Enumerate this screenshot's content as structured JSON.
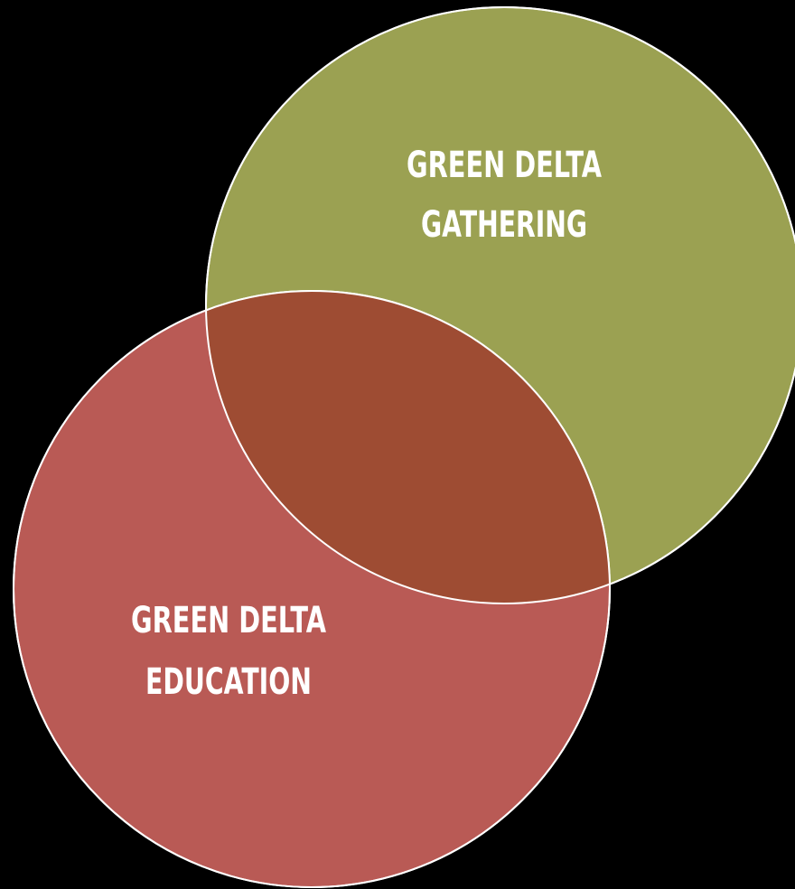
{
  "background_color": "#000000",
  "sets": [
    {
      "id": "gathering",
      "name_lines": [
        "GREEN DELTA",
        "GATHERING"
      ],
      "color": "#9ba152"
    },
    {
      "id": "education",
      "name_lines": [
        "GREEN DELTA",
        "EDUCATION"
      ],
      "color": "#b95a55"
    }
  ],
  "intersection_color": "#9e4c33",
  "outline_color": "#ffffff"
}
